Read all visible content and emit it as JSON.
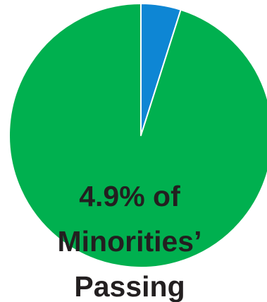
{
  "chart_data": {
    "type": "pie",
    "slices": [
      {
        "label": "",
        "value": 4.9,
        "color": "#0e86d4"
      },
      {
        "label": "",
        "value": 95.1,
        "color": "#00b04f"
      }
    ],
    "start_angle_deg": 0,
    "direction": "clockwise",
    "annotation": [
      "4.9% of",
      "Minorities’",
      "Passing"
    ],
    "title": "",
    "legend": "none"
  }
}
